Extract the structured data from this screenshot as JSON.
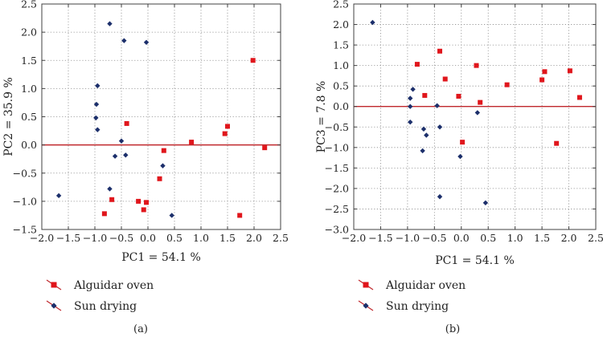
{
  "colors": {
    "alguidar": "#e0161c",
    "sun": "#1c2f6b",
    "zero_line": "#c0282d",
    "frame": "#404040",
    "grid": "#8a8a8a"
  },
  "legend_entries": [
    {
      "label": "Alguidar oven",
      "marker": "square",
      "color": "#e0161c"
    },
    {
      "label": "Sun drying",
      "marker": "diamond",
      "color": "#1c2f6b"
    }
  ],
  "chart_data": [
    {
      "type": "scatter",
      "panel_label": "(a)",
      "xlabel": "PC1 = 54.1 %",
      "ylabel": "PC2 = 35.9 %",
      "xlim": [
        -2.0,
        2.5
      ],
      "ylim": [
        -1.5,
        2.5
      ],
      "xticks": [
        "−2.0",
        "−1.5",
        "−1.0",
        "−0.5",
        "0.0",
        "0.5",
        "1.0",
        "1.5",
        "2.0",
        "2.5"
      ],
      "yticks": [
        "−1.5",
        "−1.0",
        "−0.5",
        "0.0",
        "0.5",
        "1.0",
        "1.5",
        "2.0",
        "2.5"
      ],
      "xtick_values": [
        -2.0,
        -1.5,
        -1.0,
        -0.5,
        0.0,
        0.5,
        1.0,
        1.5,
        2.0,
        2.5
      ],
      "ytick_values": [
        -1.5,
        -1.0,
        -0.5,
        0.0,
        0.5,
        1.0,
        1.5,
        2.0,
        2.5
      ],
      "grid": true,
      "zero_line": true,
      "series": [
        {
          "name": "Alguidar oven",
          "marker": "square",
          "color": "#e0161c",
          "points": [
            [
              -0.82,
              -1.22
            ],
            [
              -0.68,
              -0.97
            ],
            [
              -0.18,
              -1.0
            ],
            [
              -0.03,
              -1.02
            ],
            [
              -0.08,
              -1.15
            ],
            [
              0.22,
              -0.6
            ],
            [
              0.3,
              -0.1
            ],
            [
              -0.4,
              0.38
            ],
            [
              0.82,
              0.05
            ],
            [
              1.45,
              0.2
            ],
            [
              1.5,
              0.33
            ],
            [
              1.98,
              1.5
            ],
            [
              2.2,
              -0.05
            ],
            [
              1.73,
              -1.25
            ]
          ]
        },
        {
          "name": "Sun drying",
          "marker": "diamond",
          "color": "#1c2f6b",
          "points": [
            [
              -1.68,
              -0.9
            ],
            [
              -0.95,
              1.05
            ],
            [
              -0.97,
              0.72
            ],
            [
              -0.98,
              0.48
            ],
            [
              -0.95,
              0.27
            ],
            [
              -0.72,
              2.15
            ],
            [
              -0.45,
              1.85
            ],
            [
              -0.03,
              1.82
            ],
            [
              -0.5,
              0.07
            ],
            [
              -0.42,
              -0.18
            ],
            [
              -0.62,
              -0.2
            ],
            [
              -0.72,
              -0.78
            ],
            [
              0.28,
              -0.37
            ],
            [
              0.45,
              -1.25
            ]
          ]
        }
      ]
    },
    {
      "type": "scatter",
      "panel_label": "(b)",
      "xlabel": "PC1 = 54.1 %",
      "ylabel": "PC3 = 7.8 %",
      "xlim": [
        -2.0,
        2.5
      ],
      "ylim": [
        -3.0,
        2.5
      ],
      "xticks": [
        "−2.0",
        "−1.5",
        "−1.0",
        "−0.5",
        "0.0",
        "0.5",
        "1.0",
        "1.5",
        "2.0",
        "2.5"
      ],
      "yticks": [
        "−3.0",
        "−2.5",
        "−2.0",
        "−1.5",
        "−1.0",
        "−0.5",
        "0.0",
        "0.5",
        "1.0",
        "1.5",
        "2.0",
        "2.5"
      ],
      "xtick_values": [
        -2.0,
        -1.5,
        -1.0,
        -0.5,
        0.0,
        0.5,
        1.0,
        1.5,
        2.0,
        2.5
      ],
      "ytick_values": [
        -3.0,
        -2.5,
        -2.0,
        -1.5,
        -1.0,
        -0.5,
        0.0,
        0.5,
        1.0,
        1.5,
        2.0,
        2.5
      ],
      "grid": true,
      "zero_line": true,
      "series": [
        {
          "name": "Alguidar oven",
          "marker": "square",
          "color": "#e0161c",
          "points": [
            [
              -0.82,
              1.03
            ],
            [
              -0.4,
              1.35
            ],
            [
              -0.68,
              0.27
            ],
            [
              -0.3,
              0.67
            ],
            [
              -0.05,
              0.25
            ],
            [
              0.28,
              1.0
            ],
            [
              0.35,
              0.1
            ],
            [
              0.02,
              -0.87
            ],
            [
              0.85,
              0.53
            ],
            [
              1.5,
              0.65
            ],
            [
              1.55,
              0.85
            ],
            [
              2.02,
              0.87
            ],
            [
              2.2,
              0.22
            ],
            [
              1.77,
              -0.9
            ]
          ]
        },
        {
          "name": "Sun drying",
          "marker": "diamond",
          "color": "#1c2f6b",
          "points": [
            [
              -1.65,
              2.05
            ],
            [
              -0.9,
              0.42
            ],
            [
              -0.95,
              0.2
            ],
            [
              -0.95,
              0.0
            ],
            [
              -0.95,
              -0.38
            ],
            [
              -0.7,
              -0.55
            ],
            [
              -0.65,
              -0.7
            ],
            [
              -0.72,
              -1.08
            ],
            [
              -0.45,
              0.02
            ],
            [
              -0.4,
              -0.5
            ],
            [
              -0.4,
              -2.2
            ],
            [
              -0.02,
              -1.22
            ],
            [
              0.3,
              -0.15
            ],
            [
              0.45,
              -2.35
            ]
          ]
        }
      ]
    }
  ]
}
